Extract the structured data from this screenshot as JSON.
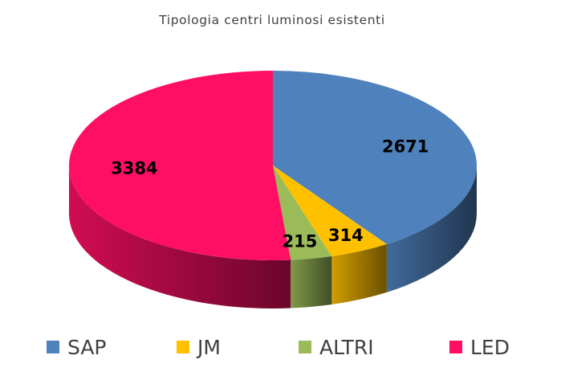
{
  "chart_data": {
    "type": "pie",
    "style": "3d",
    "title": "Tipologia centri luminosi esistenti",
    "categories": [
      "SAP",
      "JM",
      "ALTRI",
      "LED"
    ],
    "values": [
      2671,
      314,
      215,
      3384
    ],
    "colors": [
      "#4F81BD",
      "#FFC000",
      "#9BBB59",
      "#FF0F64"
    ],
    "data_labels": [
      "2671",
      "314",
      "215",
      "3384"
    ],
    "legend": {
      "position": "bottom",
      "entries": [
        "SAP",
        "JM",
        "ALTRI",
        "LED"
      ]
    }
  }
}
